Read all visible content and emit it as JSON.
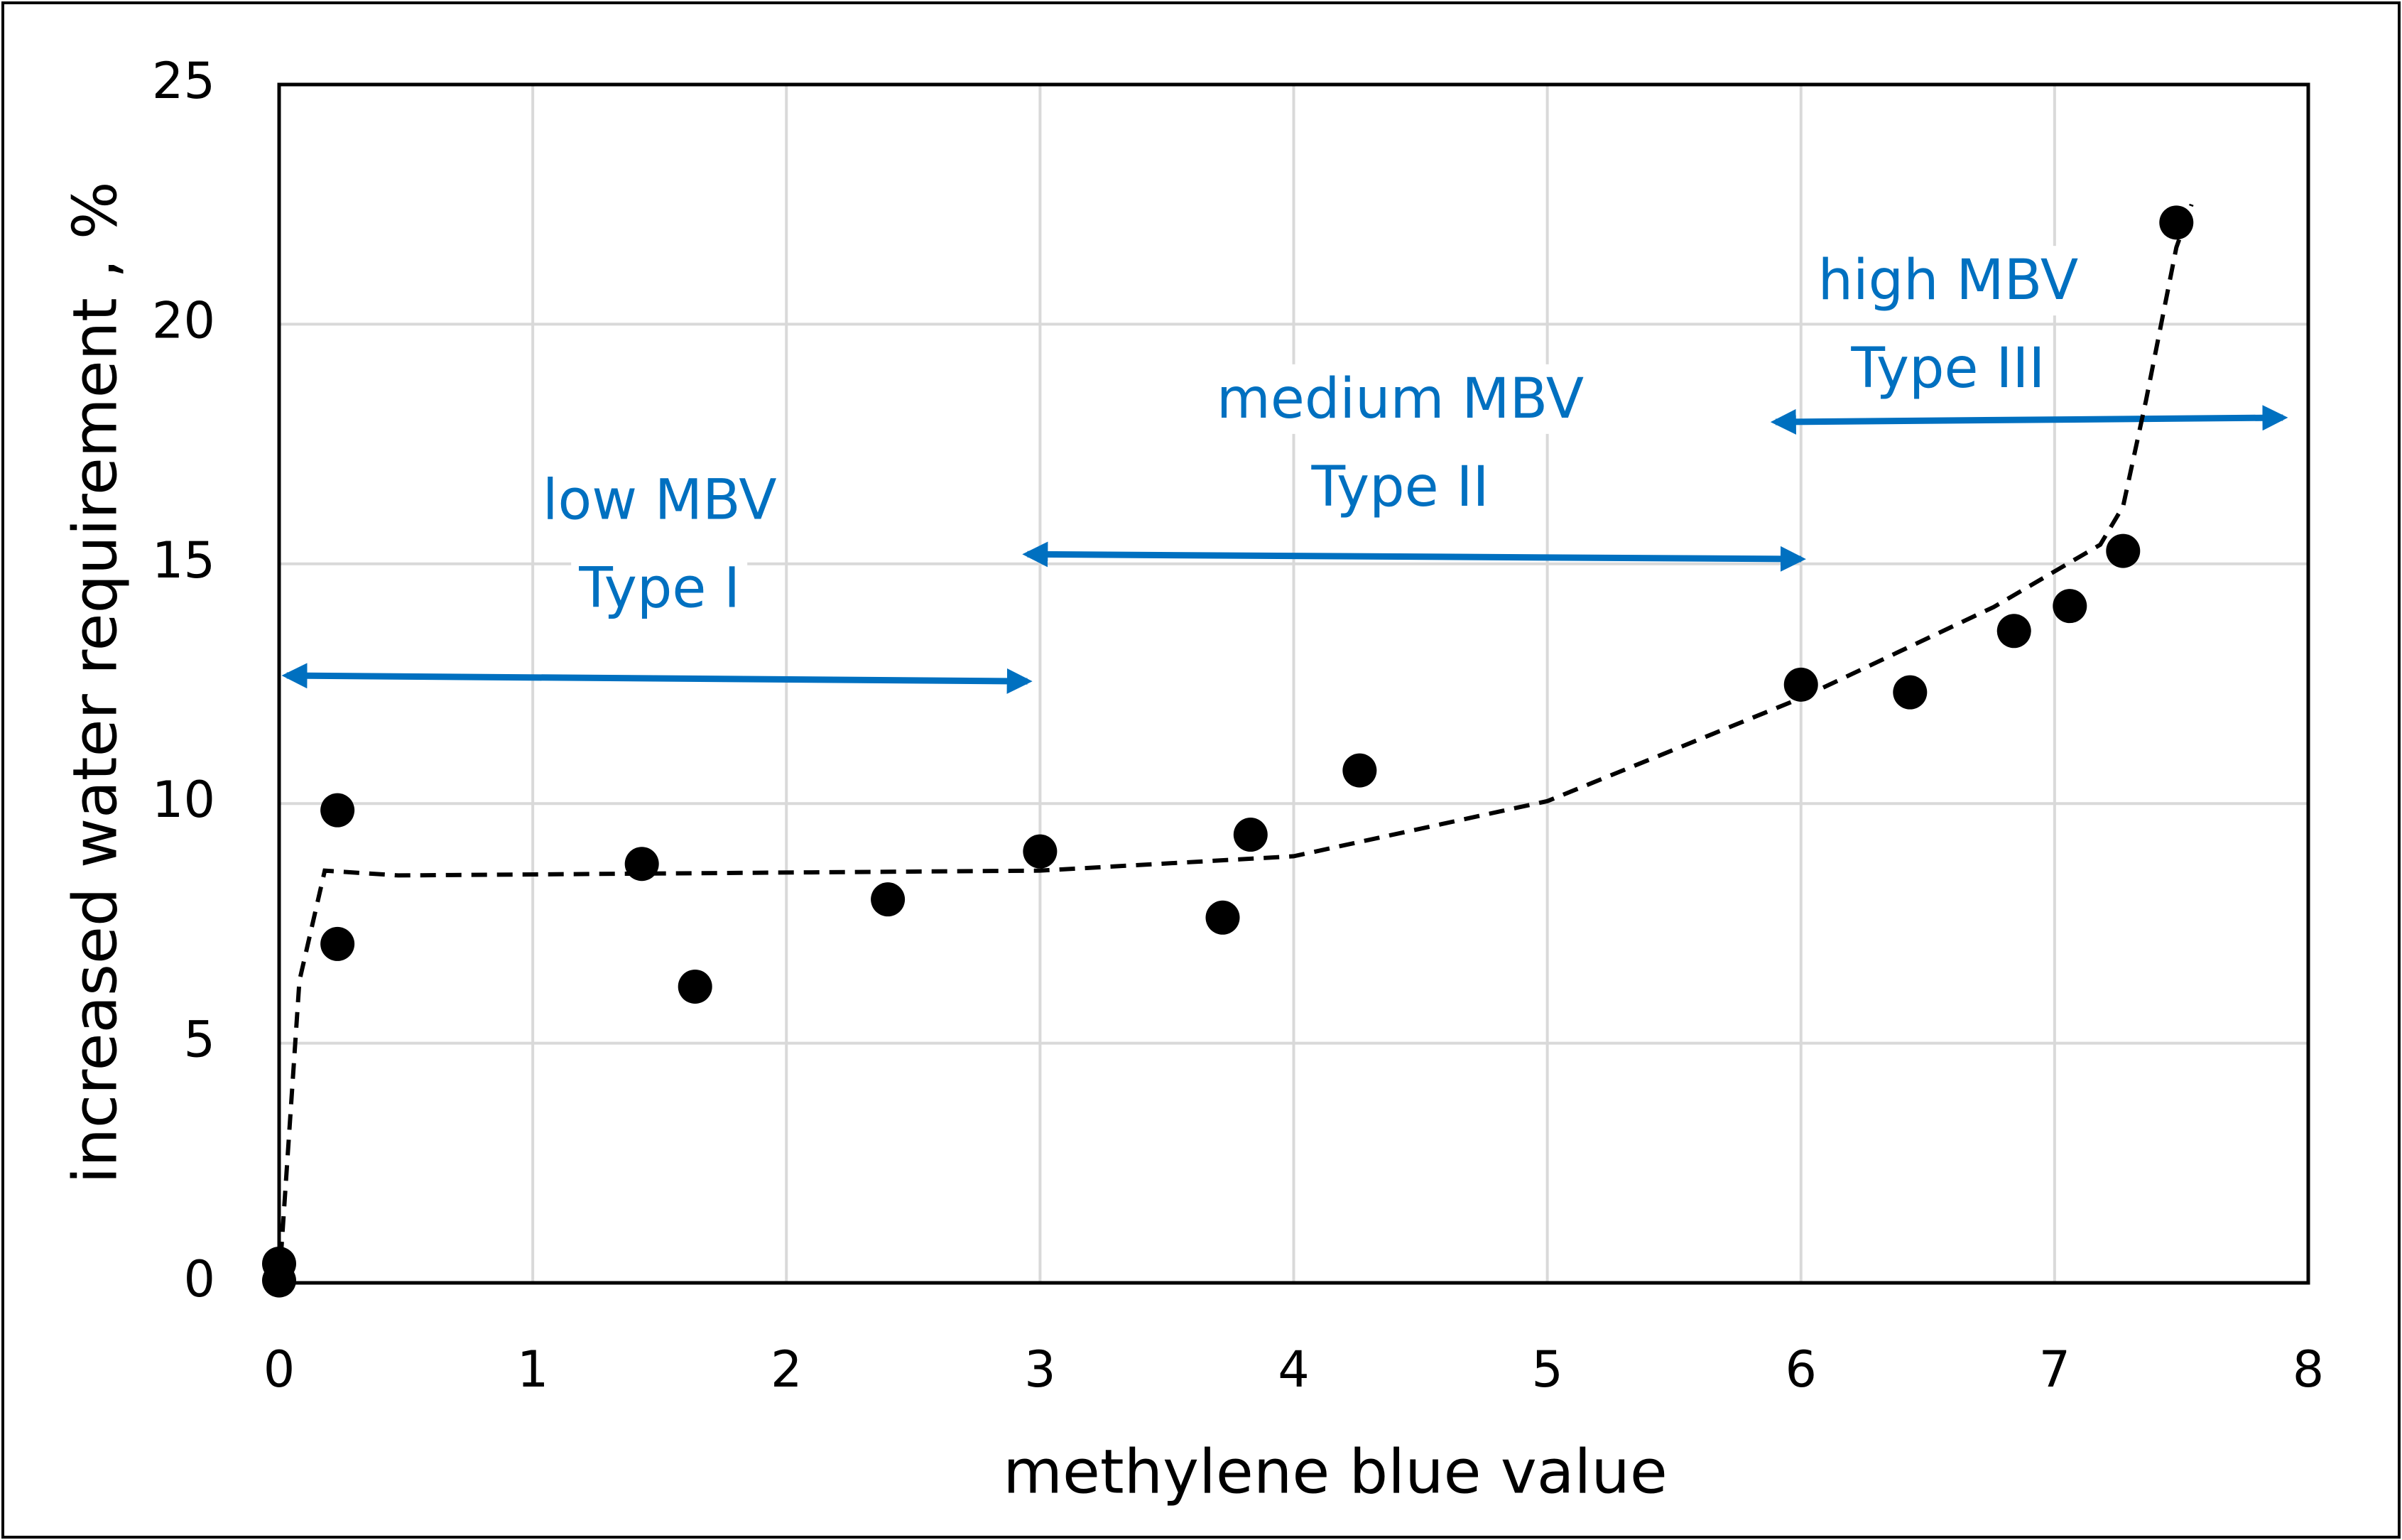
{
  "chart_data": {
    "type": "scatter",
    "xlabel": "methylene blue value",
    "ylabel": "increased water requirement , %",
    "xlim": [
      0,
      8
    ],
    "xticks": [
      0,
      1,
      2,
      3,
      4,
      5,
      6,
      7,
      8
    ],
    "ylim": [
      0,
      25
    ],
    "yticks": [
      0,
      5,
      10,
      15,
      20,
      25
    ],
    "grid": true,
    "series": [
      {
        "color": "#000000",
        "x": [
          0,
          0,
          0.23,
          0.23,
          1.43,
          1.64,
          2.4,
          3.0,
          3.72,
          3.83,
          4.26,
          6.0,
          6.43,
          6.84,
          7.06,
          7.27,
          7.48
        ],
        "values": [
          0.4,
          0.05,
          9.86,
          7.07,
          8.74,
          6.18,
          8.0,
          9.0,
          7.62,
          9.35,
          10.69,
          12.48,
          12.32,
          13.6,
          14.12,
          15.27,
          22.12
        ]
      }
    ],
    "trend": {
      "color": "#000000",
      "dashed": true,
      "x": [
        0,
        0.08,
        0.18,
        0.47,
        3,
        4,
        5,
        6,
        6.76,
        7.18,
        7.27,
        7.36,
        7.48,
        7.54
      ],
      "values": [
        0,
        6.3,
        8.6,
        8.5,
        8.6,
        8.9,
        10.05,
        12.2,
        14.1,
        15.4,
        16.2,
        18.4,
        21.6,
        22.5
      ]
    },
    "annotations": [
      {
        "lines": [
          "low MBV",
          "Type I"
        ],
        "x": 1.5,
        "y": 16.26,
        "color": "#0070c0",
        "arrow": {
          "x": [
            0.03,
            2.95
          ],
          "y": [
            12.67,
            12.55
          ]
        }
      },
      {
        "lines": [
          "medium MBV",
          "Type II"
        ],
        "x": 4.42,
        "y": 18.37,
        "color": "#0070c0",
        "arrow": {
          "x": [
            2.95,
            6.0
          ],
          "y": [
            15.2,
            15.1
          ]
        }
      },
      {
        "lines": [
          "high MBV",
          "Type III"
        ],
        "x": 6.58,
        "y": 20.84,
        "color": "#0070c0",
        "arrow": {
          "x": [
            5.9,
            7.9
          ],
          "y": [
            17.96,
            18.05
          ]
        }
      }
    ]
  }
}
